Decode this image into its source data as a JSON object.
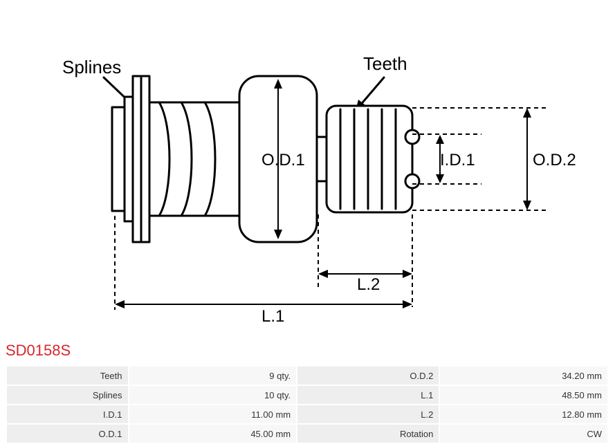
{
  "product_code": "SD0158S",
  "diagram": {
    "labels": {
      "splines": "Splines",
      "teeth": "Teeth",
      "od1": "O.D.1",
      "od2": "O.D.2",
      "id1": "I.D.1",
      "l1": "L.1",
      "l2": "L.2"
    },
    "stroke_color": "#000000",
    "stroke_width_main": 3,
    "stroke_width_dim": 2,
    "dash_pattern": "6,5",
    "background": "#ffffff",
    "label_fontsize": 26,
    "dim_fontsize": 24,
    "product_code_color": "#d7272e",
    "product_code_fontsize": 22,
    "table_label_bg": "#eeeeee",
    "table_value_bg": "#f7f7f7",
    "table_fontsize": 13,
    "table_text_color": "#333333"
  },
  "spec_rows": [
    {
      "l1": "Teeth",
      "v1": "9 qty.",
      "l2": "O.D.2",
      "v2": "34.20 mm"
    },
    {
      "l1": "Splines",
      "v1": "10 qty.",
      "l2": "L.1",
      "v2": "48.50 mm"
    },
    {
      "l1": "I.D.1",
      "v1": "11.00 mm",
      "l2": "L.2",
      "v2": "12.80 mm"
    },
    {
      "l1": "O.D.1",
      "v1": "45.00 mm",
      "l2": "Rotation",
      "v2": "CW"
    }
  ]
}
